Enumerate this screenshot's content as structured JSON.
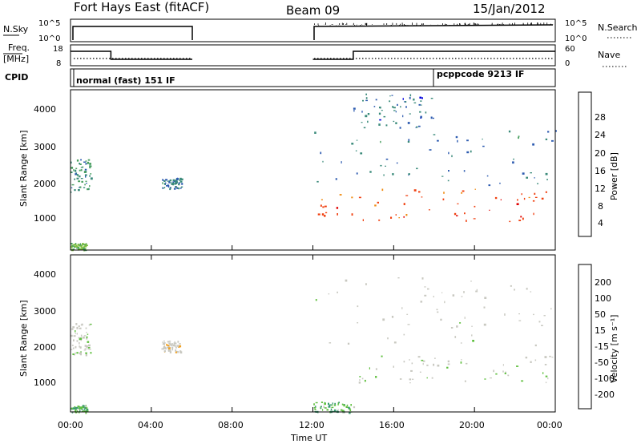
{
  "header": {
    "station": "Fort Hays East (fitACF)",
    "beam": "Beam 09",
    "date": "15/Jan/2012"
  },
  "top_panels": {
    "nsky_label": "N.Sky",
    "nsky_ticks": [
      "10^5",
      "10^0"
    ],
    "nsearch_label": "N.Search",
    "freq_label": "Freq.",
    "freq_unit": "[MHz]",
    "freq_ticks": [
      "18",
      "8"
    ],
    "nave_label": "Nave",
    "nave_ticks": [
      "60",
      "0"
    ],
    "cpid_label": "CPID",
    "cpid_first": "normal (fast) 151 IF",
    "cpid_second": "pcppcode 9213 IF"
  },
  "x_axis": {
    "label": "Time UT",
    "ticks": [
      "00:00",
      "04:00",
      "08:00",
      "12:00",
      "16:00",
      "20:00",
      "00:00"
    ]
  },
  "power_panel": {
    "ylabel": "Slant Range [km]",
    "yticks": [
      "4000",
      "3000",
      "2000",
      "1000"
    ],
    "colorbar_label": "Power [dB]",
    "colorbar_ticks": [
      "28",
      "24",
      "20",
      "16",
      "12",
      "8",
      "4"
    ],
    "colors": [
      "#0000dd",
      "#2d5bb0",
      "#3a8a7a",
      "#4aa060",
      "#80c040",
      "#f0c020",
      "#f08a10",
      "#f04010",
      "#e00000"
    ]
  },
  "velocity_panel": {
    "ylabel": "Slant Range [km]",
    "yticks": [
      "4000",
      "3000",
      "2000",
      "1000"
    ],
    "colorbar_label": "Velocity [m s⁻¹]",
    "colorbar_ticks": [
      "200",
      "100",
      "50",
      "15",
      "-15",
      "-50",
      "-100",
      "-200"
    ],
    "colors": [
      "#1a2ab0",
      "#2a58b0",
      "#3a9a70",
      "#60c040",
      "#c8c8c0",
      "#c8c8c0",
      "#f0a020",
      "#f07010",
      "#f02010"
    ]
  },
  "chart_data": [
    {
      "type": "heatmap",
      "title": "Power",
      "xlabel": "Time UT",
      "ylabel": "Slant Range [km]",
      "xlim": [
        0,
        24
      ],
      "ylim": [
        200,
        4600
      ],
      "colorbar": {
        "label": "Power [dB]",
        "range": [
          0,
          32
        ]
      },
      "regions": [
        {
          "t_start": 0.0,
          "t_end": 1.0,
          "range_start": 1800,
          "range_end": 2700,
          "value": 10
        },
        {
          "t_start": 0.0,
          "t_end": 0.8,
          "range_start": 200,
          "range_end": 400,
          "value": 14
        },
        {
          "t_start": 4.5,
          "t_end": 5.5,
          "range_start": 1900,
          "range_end": 2200,
          "value": 8
        },
        {
          "t_start": 12.0,
          "t_end": 24.0,
          "range_start": 1000,
          "range_end": 1900,
          "value": 26
        },
        {
          "t_start": 12.0,
          "t_end": 24.0,
          "range_start": 2000,
          "range_end": 3500,
          "value": 8
        },
        {
          "t_start": 14.0,
          "t_end": 18.0,
          "range_start": 3500,
          "range_end": 4500,
          "value": 6
        }
      ]
    },
    {
      "type": "heatmap",
      "title": "Velocity",
      "xlabel": "Time UT",
      "ylabel": "Slant Range [km]",
      "xlim": [
        0,
        24
      ],
      "ylim": [
        200,
        4600
      ],
      "colorbar": {
        "label": "Velocity [m s⁻¹]",
        "range": [
          -200,
          200
        ]
      },
      "regions": [
        {
          "t_start": 0.0,
          "t_end": 1.0,
          "range_start": 1800,
          "range_end": 2700,
          "value": 0
        },
        {
          "t_start": 0.0,
          "t_end": 0.8,
          "range_start": 200,
          "range_end": 400,
          "value": -60
        },
        {
          "t_start": 4.5,
          "t_end": 5.5,
          "range_start": 1900,
          "range_end": 2200,
          "value": 40
        },
        {
          "t_start": 14.0,
          "t_end": 24.0,
          "range_start": 1000,
          "range_end": 1800,
          "value": 0
        },
        {
          "t_start": 12.0,
          "t_end": 14.0,
          "range_start": 200,
          "range_end": 500,
          "value": -60
        },
        {
          "t_start": 12.0,
          "t_end": 24.0,
          "range_start": 2000,
          "range_end": 4000,
          "value": 10
        }
      ]
    },
    {
      "type": "line",
      "title": "Freq.",
      "series": [
        {
          "name": "Freq.",
          "x": [
            0,
            2,
            2,
            6,
            12,
            14,
            14,
            24
          ],
          "values": [
            16,
            16,
            11,
            11,
            11,
            11,
            16,
            16
          ]
        }
      ],
      "ylim": [
        8,
        18
      ]
    }
  ]
}
